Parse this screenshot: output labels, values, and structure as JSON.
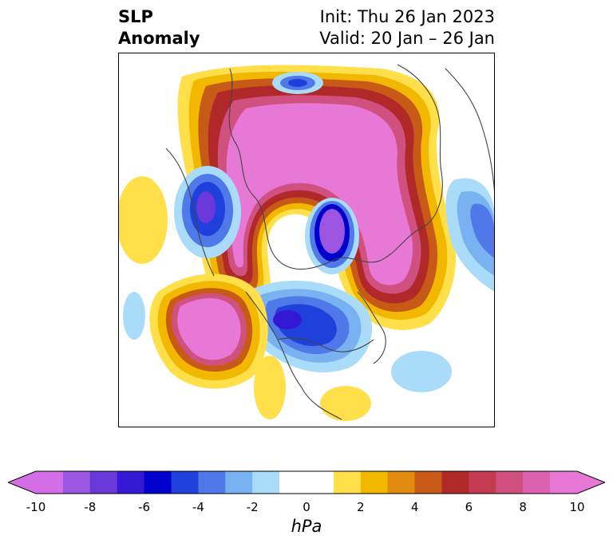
{
  "header": {
    "title_line1": "SLP",
    "title_line2": "Anomaly",
    "init": "Init: Thu 26 Jan 2023",
    "valid": "Valid: 20 Jan – 26 Jan"
  },
  "colorbar": {
    "unit": "hPa",
    "ticks": [
      "-10",
      "-8",
      "-6",
      "-4",
      "-2",
      "0",
      "2",
      "4",
      "6",
      "8",
      "10"
    ],
    "bins": [
      {
        "color": "#d46ee6"
      },
      {
        "color": "#9b55e0"
      },
      {
        "color": "#6a38d9"
      },
      {
        "color": "#3418d4"
      },
      {
        "color": "#0000cc"
      },
      {
        "color": "#2040dc"
      },
      {
        "color": "#4f78e8"
      },
      {
        "color": "#78b2f0"
      },
      {
        "color": "#aadcfa"
      },
      {
        "color": "#ffffff"
      },
      {
        "color": "#ffffff"
      },
      {
        "color": "#ffe04a"
      },
      {
        "color": "#f2b800"
      },
      {
        "color": "#e08a10"
      },
      {
        "color": "#c85a18"
      },
      {
        "color": "#b02828"
      },
      {
        "color": "#c43a4e"
      },
      {
        "color": "#d05080"
      },
      {
        "color": "#dc62b0"
      },
      {
        "color": "#e878d6"
      }
    ],
    "min_extend_color": "#d46ee6",
    "max_extend_color": "#e878d6"
  }
}
